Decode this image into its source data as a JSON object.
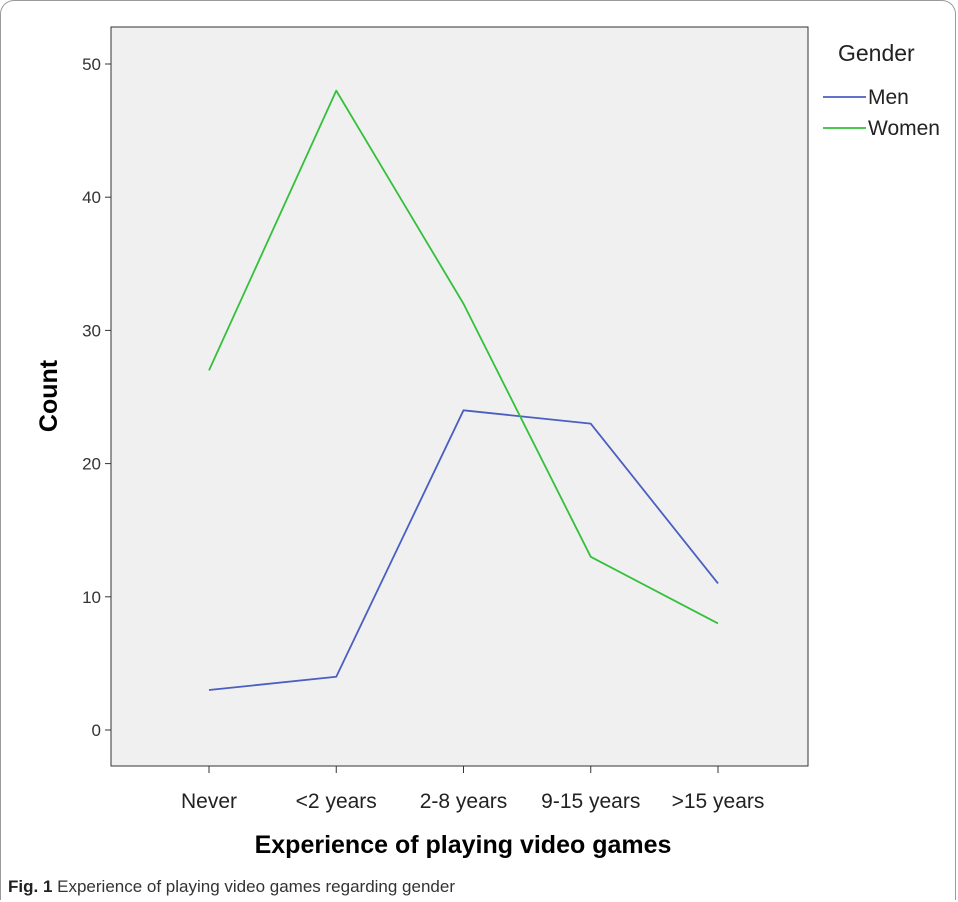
{
  "chart_data": {
    "type": "line",
    "categories": [
      "Never",
      "<2 years",
      "2-8 years",
      "9-15 years",
      ">15 years"
    ],
    "series": [
      {
        "name": "Men",
        "color": "#4a5fc1",
        "values": [
          3,
          4,
          24,
          23,
          11
        ]
      },
      {
        "name": "Women",
        "color": "#33c03a",
        "values": [
          27,
          48,
          32,
          13,
          8
        ]
      }
    ],
    "xlabel": "Experience of playing video games",
    "ylabel": "Count",
    "ylim": [
      0,
      52
    ],
    "yticks": [
      0,
      10,
      20,
      30,
      40,
      50
    ],
    "legend_title": "Gender",
    "legend_position": "right",
    "plot_background": "#f0f0f0",
    "grid": false
  },
  "caption": {
    "label": "Fig. 1",
    "text": " Experience of playing video games regarding gender"
  }
}
